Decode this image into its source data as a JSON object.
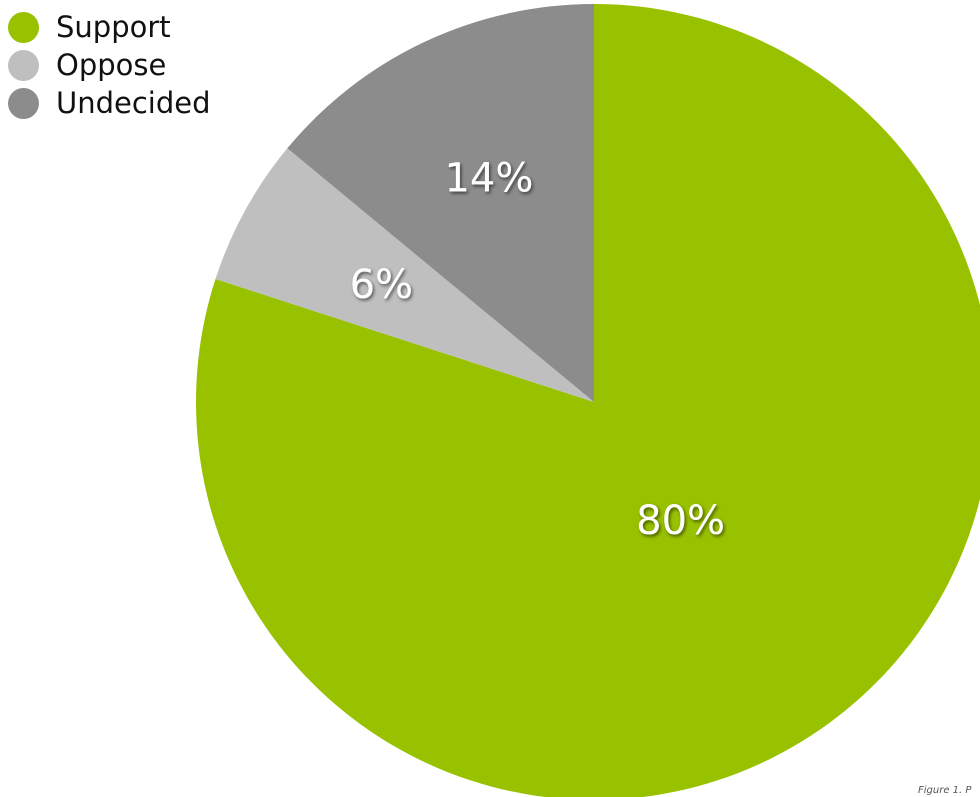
{
  "chart_data": {
    "type": "pie",
    "slices": [
      {
        "name": "Support",
        "value": 80,
        "label": "80%",
        "color": "#98c100"
      },
      {
        "name": "Oppose",
        "value": 6,
        "label": "6%",
        "color": "#bfbfbf"
      },
      {
        "name": "Undecided",
        "value": 14,
        "label": "14%",
        "color": "#8c8c8c"
      }
    ],
    "legend_placement": "top-left",
    "start": "top",
    "direction": "clockwise"
  },
  "footnote": "Figure 1. P"
}
